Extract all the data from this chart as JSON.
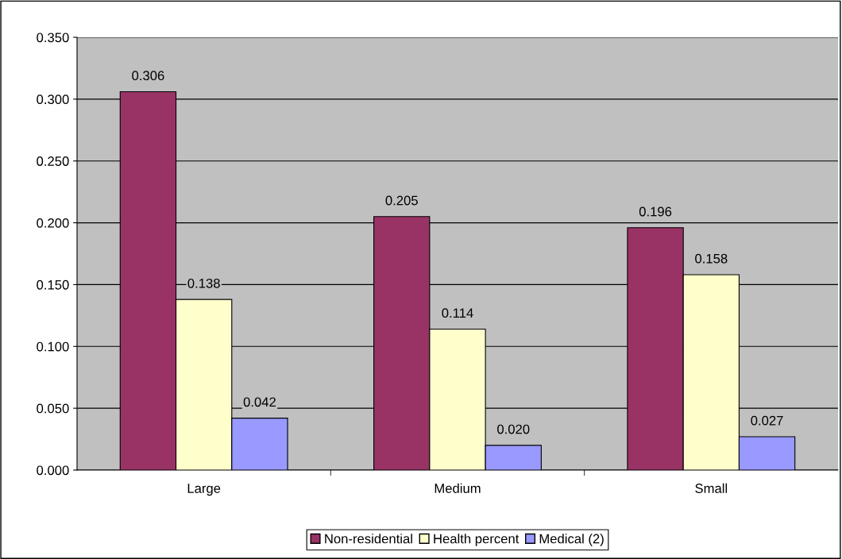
{
  "chart_data": {
    "type": "bar",
    "categories": [
      "Large",
      "Medium",
      "Small"
    ],
    "series": [
      {
        "name": "Non-residential",
        "color": "#993366",
        "values": [
          0.306,
          0.205,
          0.196
        ],
        "value_labels": [
          "0.306",
          "0.205",
          "0.196"
        ]
      },
      {
        "name": "Health percent",
        "color": "#ffffcc",
        "values": [
          0.138,
          0.114,
          0.158
        ],
        "value_labels": [
          "0.138",
          "0.114",
          "0.158"
        ]
      },
      {
        "name": "Medical (2)",
        "color": "#9999ff",
        "values": [
          0.042,
          0.02,
          0.027
        ],
        "value_labels": [
          "0.042",
          "0.020",
          "0.027"
        ]
      }
    ],
    "ylim": [
      0,
      0.35
    ],
    "yticks": [
      {
        "value": 0,
        "label": "0.000"
      },
      {
        "value": 0.05,
        "label": "0.050"
      },
      {
        "value": 0.1,
        "label": "0.100"
      },
      {
        "value": 0.15,
        "label": "0.150"
      },
      {
        "value": 0.2,
        "label": "0.200"
      },
      {
        "value": 0.25,
        "label": "0.250"
      },
      {
        "value": 0.3,
        "label": "0.300"
      },
      {
        "value": 0.35,
        "label": "0.350"
      }
    ],
    "grid": "y",
    "legend": "bottom"
  }
}
